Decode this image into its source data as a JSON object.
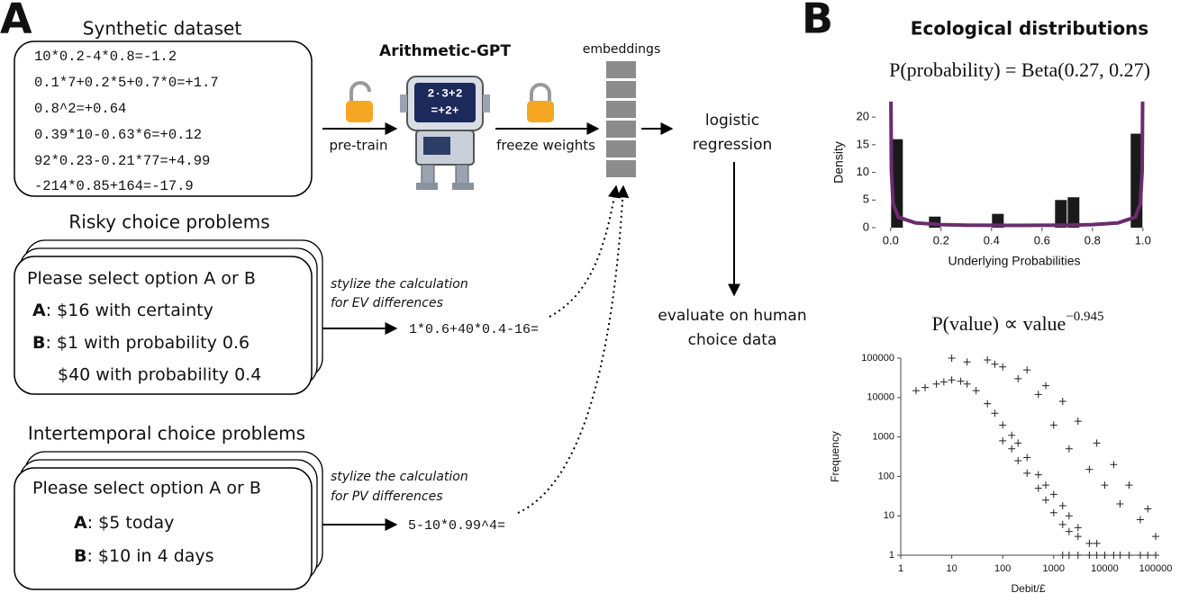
{
  "panel_a": {
    "label": "A",
    "dataset_title": "Synthetic dataset",
    "dataset_lines": [
      "10*0.2-4*0.8=-1.2",
      "0.1*7+0.2*5+0.7*0=+1.7",
      "0.8^2=+0.64",
      "0.39*10-0.63*6=+0.12",
      "92*0.23-0.21*77=+4.99",
      "-214*0.85+164=-17.9"
    ],
    "model_name": "Arithmetic-GPT",
    "robot_screen": [
      "2·3+2",
      "=+2+"
    ],
    "pretrain_label": "pre-train",
    "freeze_label": "freeze weights",
    "embeddings_label": "embeddings",
    "regression_lines": [
      "logistic",
      "regression"
    ],
    "evaluate_lines": [
      "evaluate on human",
      "choice data"
    ],
    "risky": {
      "title": "Risky choice problems",
      "prompt": "Please select option A or B",
      "options": [
        {
          "label": "A",
          "text": ": $16 with certainty"
        },
        {
          "label": "B",
          "text": ": $1 with probability 0.6"
        }
      ],
      "extra_line": "$40 with probability 0.4",
      "stylize_lines": [
        "stylize the calculation",
        "for EV differences"
      ],
      "expression": "1*0.6+40*0.4-16="
    },
    "intertemporal": {
      "title": "Intertemporal choice problems",
      "prompt": "Please select option A or B",
      "options": [
        {
          "label": "A",
          "text": ": $5 today"
        },
        {
          "label": "B",
          "text": ": $10 in 4 days"
        }
      ],
      "stylize_lines": [
        "stylize the calculation",
        "for PV differences"
      ],
      "expression": "5-10*0.99^4="
    }
  },
  "panel_b": {
    "label": "B",
    "title": "Ecological distributions",
    "formula_1": "P(probability) = Beta(0.27, 0.27)",
    "formula_2": {
      "base": "P(value) ∝ value",
      "exponent": "−0.945"
    }
  },
  "chart_data": [
    {
      "type": "histogram",
      "bins": [
        0,
        0.05,
        0.1,
        0.15,
        0.2,
        0.25,
        0.3,
        0.35,
        0.4,
        0.45,
        0.5,
        0.55,
        0.6,
        0.65,
        0.7,
        0.75,
        0.8,
        0.85,
        0.9,
        0.95,
        1
      ],
      "values": [
        16,
        0,
        0,
        2,
        0,
        0,
        0,
        0,
        2.5,
        0,
        0,
        0,
        0,
        5,
        5.5,
        0,
        0,
        0,
        0,
        17
      ],
      "color": "#1a1a1a",
      "curve": {
        "x": [
          0.001,
          0.003,
          0.01,
          0.03,
          0.1,
          0.2,
          0.3,
          0.5,
          0.7,
          0.8,
          0.9,
          0.97,
          0.99,
          0.997,
          0.999
        ],
        "values": [
          22.8,
          10.3,
          4.3,
          1.9,
          0.85,
          0.56,
          0.46,
          0.41,
          0.46,
          0.56,
          0.85,
          1.9,
          4.3,
          10.3,
          22.8
        ],
        "color": "#6a2c6e"
      },
      "xlim": [
        -0.06,
        1.04
      ],
      "ylim": [
        0,
        23.6
      ],
      "xticks": [
        {
          "value": 0,
          "label": "0.0"
        },
        0.2,
        0.4,
        0.6,
        0.8,
        {
          "value": 1,
          "label": "1.0"
        }
      ],
      "yticks": [
        0,
        5,
        10,
        15,
        20
      ],
      "xlabel": "Underlying Probabilities",
      "ylabel": "Density"
    },
    {
      "type": "scatter",
      "x": [
        2,
        3,
        5,
        7,
        10,
        15,
        20,
        30,
        50,
        70,
        100,
        150,
        200,
        300,
        500,
        700,
        1000,
        1500,
        2000,
        3000,
        100,
        150,
        200,
        300,
        500,
        700,
        1000,
        1500,
        2000,
        3000,
        5000,
        7000,
        1500,
        2000,
        3000,
        5000,
        7000,
        10000,
        15000,
        20000,
        30000,
        50000,
        70000,
        100000,
        10,
        20,
        50,
        70,
        100,
        200,
        300,
        500,
        700,
        1000,
        1500,
        2000,
        3000,
        5000,
        7000,
        10000,
        15000,
        20000,
        30000,
        50000,
        70000,
        100000
      ],
      "values": [
        15000,
        18000,
        22000,
        25000,
        28000,
        26000,
        22000,
        15000,
        7000,
        4000,
        2000,
        1100,
        700,
        300,
        110,
        60,
        35,
        18,
        10,
        5,
        800,
        500,
        250,
        120,
        50,
        25,
        12,
        6,
        4,
        3,
        2,
        2,
        1,
        1,
        1,
        1,
        1,
        1,
        1,
        1,
        1,
        1,
        1,
        1,
        100000,
        80000,
        90000,
        70000,
        60000,
        30000,
        50000,
        12000,
        20000,
        2000,
        8000,
        500,
        2500,
        150,
        700,
        60,
        200,
        20,
        60,
        8,
        15,
        3
      ],
      "color": "#222222",
      "log_x": true,
      "log_y": true,
      "xlim": [
        1,
        100000
      ],
      "ylim": [
        1,
        100000
      ],
      "xticks": [
        1,
        10,
        100,
        1000,
        10000,
        100000
      ],
      "yticks": [
        1,
        10,
        100,
        1000,
        10000,
        100000
      ],
      "xlabel": "Debit/£",
      "ylabel": "Frequency"
    }
  ]
}
